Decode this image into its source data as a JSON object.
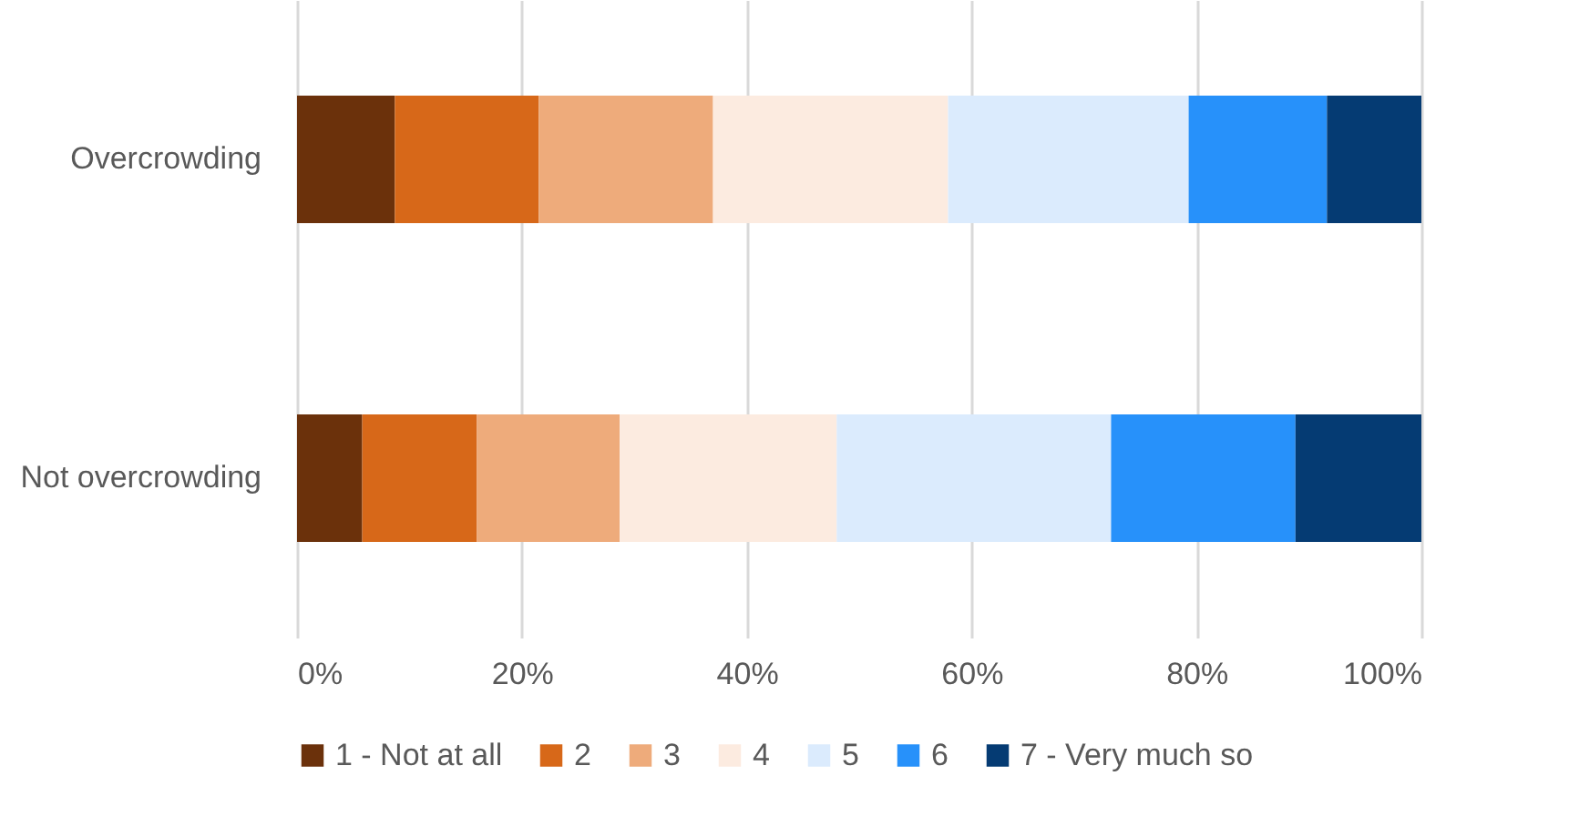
{
  "chart_data": {
    "type": "bar",
    "orientation": "horizontal",
    "stacked": true,
    "categories": [
      "Overcrowding",
      "Not overcrowding"
    ],
    "series": [
      {
        "name": "1 - Not at all",
        "color": "#6b310b",
        "values": [
          8.7,
          5.8
        ]
      },
      {
        "name": "2",
        "color": "#d76819",
        "values": [
          12.8,
          10.2
        ]
      },
      {
        "name": "3",
        "color": "#eeab7b",
        "values": [
          15.5,
          12.7
        ]
      },
      {
        "name": "4",
        "color": "#fcebe0",
        "values": [
          20.9,
          19.3
        ]
      },
      {
        "name": "5",
        "color": "#dbebfd",
        "values": [
          21.4,
          24.4
        ]
      },
      {
        "name": "6",
        "color": "#2791fa",
        "values": [
          12.3,
          16.4
        ]
      },
      {
        "name": "7 - Very much so",
        "color": "#053b73",
        "values": [
          8.4,
          11.2
        ]
      }
    ],
    "xlim": [
      0,
      100
    ],
    "xticks": [
      {
        "value": 0,
        "label": "0%"
      },
      {
        "value": 20,
        "label": "20%"
      },
      {
        "value": 40,
        "label": "40%"
      },
      {
        "value": 60,
        "label": "60%"
      },
      {
        "value": 80,
        "label": "80%"
      },
      {
        "value": 100,
        "label": "100%"
      }
    ],
    "grid": "x",
    "legend": "bottom"
  }
}
